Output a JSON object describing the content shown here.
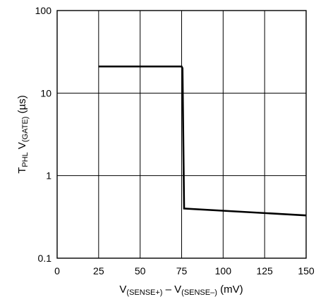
{
  "chart_data": {
    "type": "line",
    "xlabel": {
      "main1": "V",
      "sub1": "(SENSE+)",
      "mid": " – V",
      "sub2": "(SENSE–)",
      "unit": " (mV)"
    },
    "ylabel": {
      "t": "T",
      "t_sub": "PHL",
      "v": " V",
      "v_sub": "(GATE)",
      "unit": " (µs)"
    },
    "x_ticks": [
      0,
      25,
      50,
      75,
      100,
      125,
      150
    ],
    "y_ticks": [
      0.1,
      1,
      10,
      100
    ],
    "x_tick_labels": [
      "0",
      "25",
      "50",
      "75",
      "100",
      "125",
      "150"
    ],
    "y_tick_labels": [
      "0.1",
      "1",
      "10",
      "100"
    ],
    "xlim": [
      0,
      150
    ],
    "ylim": [
      0.1,
      100
    ],
    "y_scale": "log",
    "grid": true,
    "series": [
      {
        "x": [
          25,
          75,
          75.5,
          76.5,
          150
        ],
        "y": [
          21,
          21,
          20,
          0.4,
          0.33
        ]
      }
    ]
  }
}
